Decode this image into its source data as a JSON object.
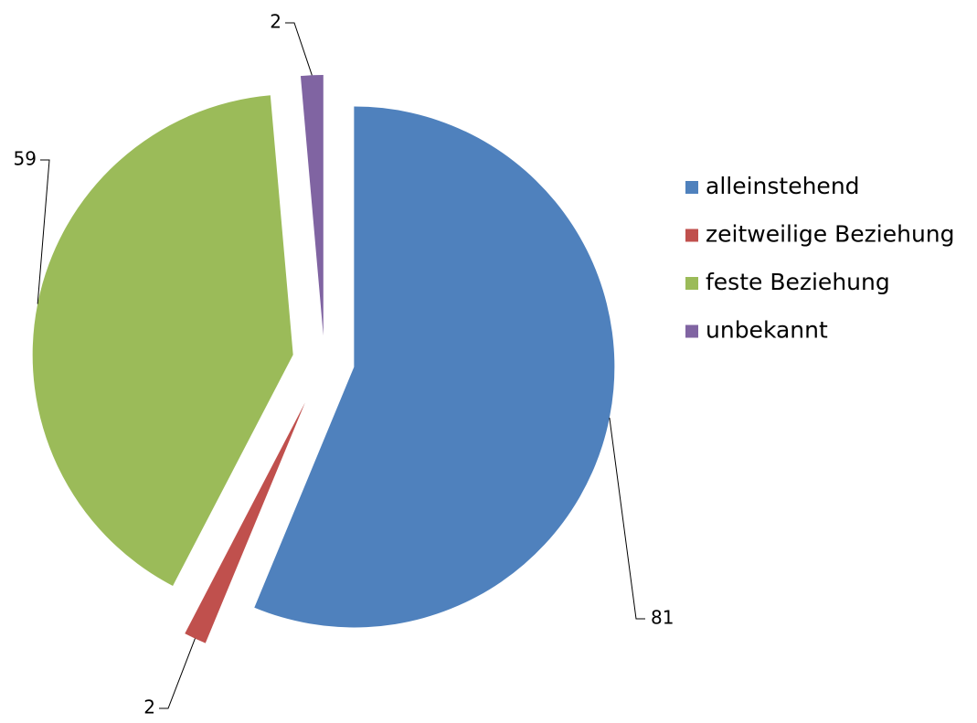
{
  "chart_data": {
    "type": "pie",
    "categories": [
      "alleinstehend",
      "zeitweilige Beziehung",
      "feste Beziehung",
      "unbekannt"
    ],
    "values": [
      81,
      2,
      59,
      2
    ],
    "colors": [
      "#4f81bd",
      "#c0504d",
      "#9bbb59",
      "#8064a2"
    ],
    "legend": "right"
  }
}
